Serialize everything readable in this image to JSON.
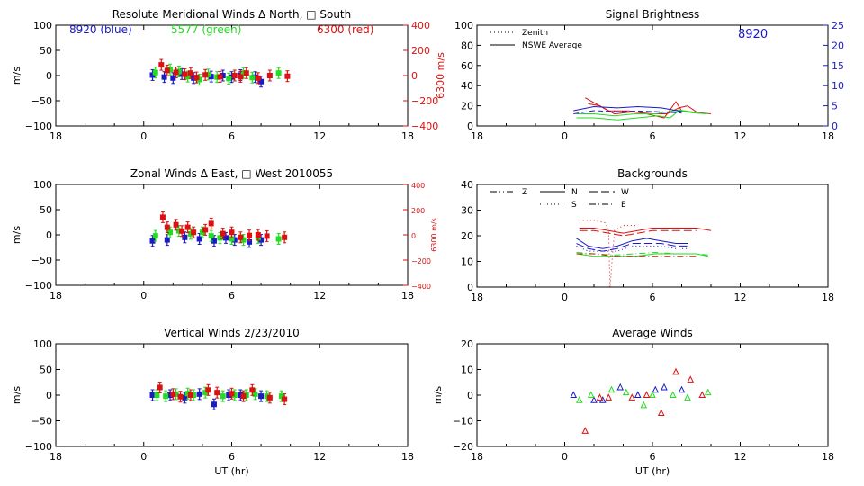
{
  "colors": {
    "blue": "#1a1ac8",
    "green": "#22dd22",
    "red": "#dd1111",
    "axis": "#000000",
    "right_axis_red": "#dd1111",
    "right_axis_blue": "#1a1ac8"
  },
  "shared": {
    "xticks": [
      "18",
      "0",
      "6",
      "12",
      "18"
    ],
    "xlabel": "UT (hr)"
  },
  "chart_data": [
    {
      "id": "meridional",
      "type": "scatter",
      "title": "Resolute Meridional Winds Δ North, □ South",
      "ylabel": "m/s",
      "ylim": [
        -100,
        100
      ],
      "yticks": [
        "100",
        "50",
        "0",
        "−50",
        "−100"
      ],
      "y2label": "6300 m/s",
      "y2lim": [
        -400,
        400
      ],
      "y2ticks": [
        "400",
        "200",
        "0",
        "−200",
        "−400"
      ],
      "annotations": [
        {
          "text": "8920 (blue)",
          "color": "blue"
        },
        {
          "text": "5577 (green)",
          "color": "green"
        },
        {
          "text": "6300 (red)",
          "color": "red"
        }
      ],
      "series": [
        {
          "color": "blue",
          "x": [
            0.6,
            1.4,
            2.0,
            2.6,
            3.4,
            4.6,
            5.4,
            6.0,
            6.6,
            7.6,
            8.0
          ],
          "y": [
            1,
            -3,
            -5,
            3,
            -5,
            -2,
            0,
            -3,
            1,
            -3,
            -12
          ]
        },
        {
          "color": "green",
          "x": [
            0.8,
            1.8,
            2.4,
            3.0,
            3.8,
            4.4,
            5.0,
            5.8,
            6.8,
            7.4,
            9.2
          ],
          "y": [
            6,
            12,
            8,
            -2,
            -8,
            2,
            -3,
            -6,
            5,
            -4,
            5
          ]
        },
        {
          "color": "red",
          "x": [
            1.2,
            1.6,
            2.2,
            2.8,
            3.2,
            3.6,
            4.2,
            5.2,
            6.2,
            6.6,
            7.0,
            7.8,
            8.6,
            9.8
          ],
          "y": [
            85,
            40,
            25,
            10,
            20,
            -15,
            5,
            -10,
            0,
            -10,
            20,
            -20,
            0,
            -5
          ]
        }
      ]
    },
    {
      "id": "zonal",
      "type": "scatter",
      "title": "Zonal Winds Δ East, □ West 2010055",
      "ylabel": "m/s",
      "ylim": [
        -100,
        100
      ],
      "yticks": [
        "100",
        "50",
        "0",
        "−50",
        "−100"
      ],
      "y2label": "6300 m/s",
      "y2lim": [
        -400,
        400
      ],
      "y2ticks": [
        "400",
        "200",
        "0",
        "−200",
        "−400"
      ],
      "series": [
        {
          "color": "blue",
          "x": [
            0.6,
            1.6,
            2.8,
            3.8,
            4.8,
            5.6,
            6.2,
            7.2,
            8.0
          ],
          "y": [
            -12,
            -10,
            -5,
            -8,
            -12,
            -6,
            -10,
            -14,
            -10
          ]
        },
        {
          "color": "green",
          "x": [
            0.8,
            1.8,
            2.4,
            3.2,
            4.0,
            4.6,
            5.2,
            6.0,
            6.8,
            7.8,
            9.2
          ],
          "y": [
            -2,
            5,
            8,
            2,
            5,
            -2,
            -6,
            -8,
            -10,
            -6,
            -8
          ]
        },
        {
          "color": "red",
          "x": [
            1.3,
            1.6,
            2.2,
            2.6,
            3.0,
            3.4,
            4.2,
            4.6,
            5.4,
            6.0,
            6.6,
            7.2,
            7.8,
            8.4,
            9.6
          ],
          "y": [
            140,
            60,
            80,
            30,
            60,
            20,
            40,
            90,
            10,
            20,
            -20,
            -5,
            0,
            -10,
            -20
          ]
        }
      ]
    },
    {
      "id": "vertical",
      "type": "scatter",
      "title": "Vertical Winds 2/23/2010",
      "ylabel": "m/s",
      "xlabel": "UT (hr)",
      "ylim": [
        -100,
        100
      ],
      "yticks": [
        "100",
        "50",
        "0",
        "−50",
        "−100"
      ],
      "series": [
        {
          "color": "blue",
          "x": [
            0.6,
            1.8,
            2.8,
            3.8,
            4.8,
            5.8,
            6.6,
            8.0
          ],
          "y": [
            0,
            0,
            -5,
            2,
            -18,
            0,
            0,
            -2
          ]
        },
        {
          "color": "green",
          "x": [
            0.9,
            1.5,
            2.2,
            3.0,
            3.4,
            4.2,
            5.4,
            6.2,
            7.0,
            7.6,
            8.4,
            9.4
          ],
          "y": [
            0,
            -2,
            2,
            3,
            0,
            5,
            -2,
            0,
            0,
            2,
            -2,
            -2
          ]
        },
        {
          "color": "red",
          "x": [
            1.1,
            2.0,
            2.5,
            3.2,
            4.4,
            5.0,
            6.0,
            6.8,
            7.4,
            8.6,
            9.6
          ],
          "y": [
            15,
            2,
            -3,
            0,
            10,
            5,
            3,
            -2,
            10,
            -5,
            -8
          ]
        }
      ]
    },
    {
      "id": "brightness",
      "type": "line",
      "title": "Signal Brightness",
      "ylim": [
        0,
        100
      ],
      "yticks": [
        "100",
        "80",
        "60",
        "40",
        "20",
        "0"
      ],
      "y2lim": [
        0,
        25
      ],
      "y2ticks": [
        "25",
        "20",
        "15",
        "10",
        "5",
        "0"
      ],
      "annotation": {
        "text": "8920",
        "color": "blue"
      },
      "legend": [
        {
          "label": "Zenith",
          "dash": "dotted"
        },
        {
          "label": "NSWE Average",
          "dash": "solid"
        }
      ],
      "series": [
        {
          "color": "red",
          "dash": "solid",
          "x": [
            1.4,
            3.0,
            4.4,
            5.6,
            6.8,
            7.6,
            8.0,
            10.0
          ],
          "y": [
            28,
            15,
            15,
            12,
            8,
            24,
            15,
            12
          ]
        },
        {
          "color": "red",
          "dash": "solid",
          "x": [
            1.6,
            2.4,
            3.4,
            4.6,
            6.0,
            7.0,
            7.8,
            8.4,
            9.0
          ],
          "y": [
            22,
            20,
            12,
            14,
            12,
            12,
            18,
            20,
            14
          ]
        },
        {
          "color": "green",
          "dash": "solid",
          "x": [
            0.8,
            2.0,
            3.4,
            4.8,
            6.2,
            7.0,
            7.8,
            8.6,
            9.6
          ],
          "y": [
            12,
            12,
            10,
            12,
            12,
            14,
            16,
            14,
            12
          ]
        },
        {
          "color": "green",
          "dash": "solid",
          "x": [
            0.8,
            2.0,
            3.6,
            5.0,
            6.4,
            7.2,
            7.8,
            8.8,
            9.8
          ],
          "y": [
            8,
            8,
            6,
            8,
            10,
            8,
            15,
            13,
            12
          ]
        },
        {
          "color": "blue",
          "dash": "solid",
          "axis": "right",
          "x": [
            0.6,
            2.0,
            3.6,
            5.0,
            6.6,
            8.0
          ],
          "y": [
            3.8,
            4.8,
            4.5,
            4.8,
            4.5,
            3.6
          ]
        },
        {
          "color": "blue",
          "dash": "dashed",
          "axis": "right",
          "x": [
            0.6,
            2.0,
            3.6,
            5.0,
            6.6,
            8.0
          ],
          "y": [
            3.0,
            3.8,
            3.5,
            3.7,
            3.5,
            3.2
          ]
        }
      ]
    },
    {
      "id": "backgrounds",
      "type": "line",
      "title": "Backgrounds",
      "ylim": [
        0,
        40
      ],
      "yticks": [
        "40",
        "30",
        "20",
        "10",
        "0"
      ],
      "legend": [
        {
          "label": "Z",
          "dash": "dashdotdot"
        },
        {
          "label": "N",
          "dash": "solid"
        },
        {
          "label": "W",
          "dash": "longdash"
        },
        {
          "label": "S",
          "dash": "dotted"
        },
        {
          "label": "E",
          "dash": "dashdot"
        }
      ],
      "series": [
        {
          "color": "red",
          "dash": "dotted",
          "x": [
            1.0,
            2.0,
            2.8,
            3.0,
            3.1,
            3.4,
            4.0,
            5.0
          ],
          "y": [
            26,
            26,
            25,
            22,
            0,
            22,
            24,
            24
          ]
        },
        {
          "color": "red",
          "dash": "solid",
          "x": [
            1.0,
            2.0,
            3.0,
            4.0,
            5.0,
            6.0,
            7.0,
            8.0,
            9.0,
            10.0
          ],
          "y": [
            23,
            23,
            22,
            21,
            22,
            23,
            23,
            23,
            23,
            22
          ]
        },
        {
          "color": "red",
          "dash": "longdash",
          "x": [
            1.0,
            2.0,
            3.0,
            4.0,
            5.0,
            6.0,
            7.0,
            8.0,
            9.0
          ],
          "y": [
            22,
            22,
            21,
            20,
            21,
            22,
            22,
            22,
            22
          ]
        },
        {
          "color": "blue",
          "dash": "solid",
          "x": [
            0.8,
            1.6,
            2.6,
            3.6,
            4.6,
            5.6,
            6.6,
            7.6,
            8.4
          ],
          "y": [
            19,
            16,
            15,
            16,
            18,
            19,
            18,
            17,
            17
          ]
        },
        {
          "color": "blue",
          "dash": "longdash",
          "x": [
            0.8,
            1.6,
            2.6,
            3.6,
            4.6,
            5.6,
            6.6,
            7.6,
            8.4
          ],
          "y": [
            17,
            15,
            14,
            15,
            17,
            17,
            17,
            16,
            16
          ]
        },
        {
          "color": "blue",
          "dash": "dotted",
          "x": [
            0.8,
            1.6,
            2.6,
            3.6,
            4.6,
            5.6,
            6.6,
            7.6,
            8.4
          ],
          "y": [
            16,
            14,
            14,
            14,
            16,
            16,
            16,
            15,
            15
          ]
        },
        {
          "color": "green",
          "dash": "solid",
          "x": [
            0.8,
            2.0,
            3.4,
            4.8,
            6.2,
            7.6,
            9.0,
            9.8
          ],
          "y": [
            13,
            12,
            12,
            12,
            13,
            13,
            13,
            12
          ]
        },
        {
          "color": "green",
          "dash": "dashdot",
          "x": [
            0.8,
            2.0,
            3.4,
            4.8,
            6.2,
            7.6,
            9.0,
            9.8
          ],
          "y": [
            13.5,
            13,
            12.5,
            13,
            13.5,
            13,
            13,
            12.5
          ]
        },
        {
          "color": "red",
          "dash": "dashdot",
          "x": [
            0.8,
            2.0,
            3.4,
            4.8,
            6.2,
            7.6,
            9.0
          ],
          "y": [
            13,
            13,
            12,
            12,
            12,
            12,
            12
          ]
        }
      ]
    },
    {
      "id": "average",
      "type": "scatter",
      "title": "Average Winds",
      "ylabel": "m/s",
      "xlabel": "UT (hr)",
      "ylim": [
        -20,
        20
      ],
      "yticks": [
        "20",
        "10",
        "0",
        "−10",
        "−20"
      ],
      "series": [
        {
          "color": "blue",
          "x": [
            0.6,
            2.0,
            2.6,
            3.8,
            5.0,
            6.2,
            6.8,
            8.0
          ],
          "y": [
            0,
            -2,
            -2,
            3,
            0,
            2,
            3,
            2
          ]
        },
        {
          "color": "green",
          "x": [
            1.0,
            1.8,
            3.2,
            4.2,
            5.4,
            6.0,
            7.4,
            8.4,
            9.8
          ],
          "y": [
            -2,
            0,
            2,
            1,
            -4,
            0,
            0,
            -1,
            1
          ]
        },
        {
          "color": "red",
          "x": [
            1.4,
            2.4,
            3.0,
            4.6,
            5.6,
            6.6,
            7.6,
            8.6,
            9.4
          ],
          "y": [
            -14,
            -1,
            -1,
            -1,
            0,
            -7,
            9,
            6,
            0
          ]
        }
      ]
    }
  ]
}
